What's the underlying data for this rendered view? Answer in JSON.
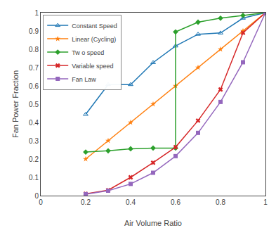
{
  "chart_data": {
    "type": "line",
    "x_label": "Air Volume Ratio",
    "y_label": "Fan Power Fraction",
    "xlim": [
      0,
      1.0
    ],
    "ylim": [
      0,
      1.0
    ],
    "xticks": [
      0,
      0.2,
      0.4,
      0.6,
      0.8,
      1.0
    ],
    "yticks": [
      0,
      0.1,
      0.2,
      0.3,
      0.4,
      0.5,
      0.6,
      0.7,
      0.8,
      0.9,
      1.0
    ],
    "grid": false,
    "legend": "upper left",
    "series": [
      {
        "name": "Constant Speed",
        "marker": "triangle-up-open",
        "x": [
          0.2,
          0.3,
          0.4,
          0.5,
          0.6,
          0.7,
          0.8,
          0.9,
          1.0
        ],
        "values": [
          0.444,
          0.607,
          0.607,
          0.727,
          0.818,
          0.882,
          0.889,
          0.97,
          1.0
        ]
      },
      {
        "name": "Linear (Cycling)",
        "marker": "star",
        "x": [
          0.2,
          0.3,
          0.4,
          0.5,
          0.6,
          0.7,
          0.8,
          0.9,
          1.0
        ],
        "values": [
          0.2,
          0.3,
          0.4,
          0.5,
          0.6,
          0.7,
          0.8,
          0.9,
          1.0
        ]
      },
      {
        "name": "Tw o speed",
        "marker": "diamond",
        "x": [
          0.2,
          0.3,
          0.4,
          0.5,
          0.6,
          0.6,
          0.7,
          0.8,
          0.9,
          1.0
        ],
        "values": [
          0.238,
          0.245,
          0.256,
          0.26,
          0.26,
          0.895,
          0.948,
          0.97,
          0.985,
          1.0
        ]
      },
      {
        "name": "Variable speed",
        "marker": "x",
        "x": [
          0.2,
          0.3,
          0.4,
          0.5,
          0.6,
          0.7,
          0.8,
          0.9,
          1.0
        ],
        "values": [
          0.01,
          0.03,
          0.1,
          0.18,
          0.265,
          0.41,
          0.58,
          0.89,
          1.0
        ]
      },
      {
        "name": "Fan Law",
        "marker": "square",
        "x": [
          0.2,
          0.3,
          0.4,
          0.5,
          0.6,
          0.7,
          0.8,
          0.9,
          1.0
        ],
        "values": [
          0.008,
          0.027,
          0.064,
          0.125,
          0.216,
          0.343,
          0.512,
          0.729,
          1.0
        ]
      }
    ]
  }
}
